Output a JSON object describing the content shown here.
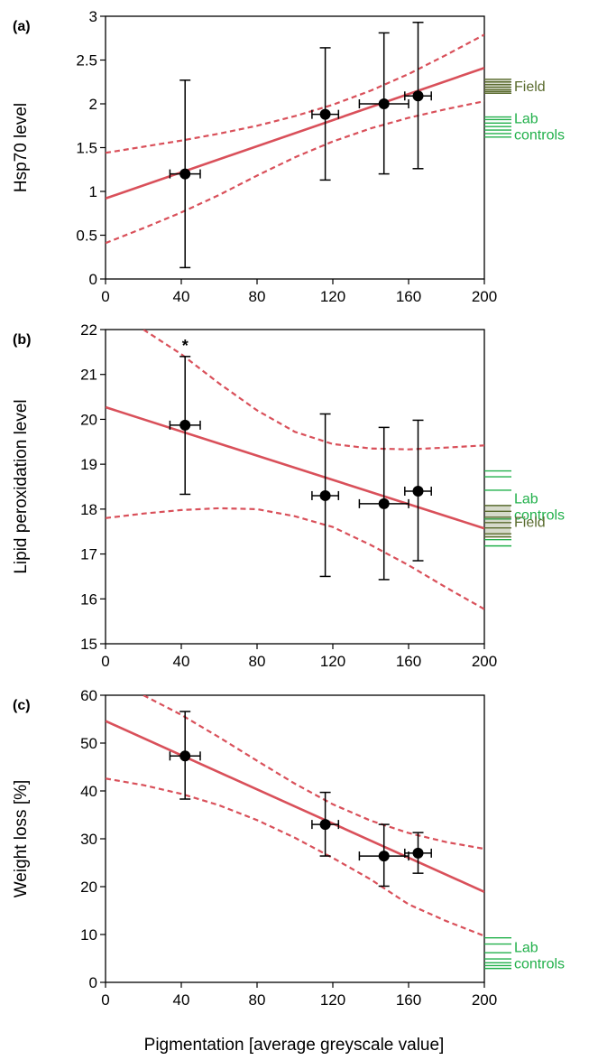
{
  "colors": {
    "fit": "#d9505a",
    "points": "#000000",
    "field": "#5a6b2e",
    "lab": "#22b04b"
  },
  "shared_xlabel": "Pigmentation [average greyscale value]",
  "chart_data": [
    {
      "panel": "(a)",
      "type": "scatter",
      "ylabel": "Hsp70 level",
      "xlim": [
        0,
        200
      ],
      "ylim": [
        0,
        3
      ],
      "xticks": [
        "0",
        "40",
        "80",
        "120",
        "160",
        "200"
      ],
      "yticks": [
        "0",
        "0.5",
        "1",
        "1.5",
        "2",
        "2.5",
        "3"
      ],
      "points": [
        {
          "x": 42,
          "y": 1.2,
          "xerr": 8,
          "ylow": 0.13,
          "yhigh": 2.27
        },
        {
          "x": 116,
          "y": 1.88,
          "xerr": 7,
          "ylow": 1.13,
          "yhigh": 2.64
        },
        {
          "x": 147,
          "y": 2.0,
          "xerr": 13,
          "ylow": 1.2,
          "yhigh": 2.81
        },
        {
          "x": 165,
          "y": 2.09,
          "xerr": 7,
          "ylow": 1.26,
          "yhigh": 2.93
        }
      ],
      "fit_line": {
        "x": [
          0,
          200
        ],
        "y": [
          0.92,
          2.41
        ]
      },
      "ci_upper": {
        "x": [
          0,
          20,
          40,
          60,
          80,
          100,
          120,
          140,
          160,
          180,
          200
        ],
        "y": [
          1.44,
          1.51,
          1.58,
          1.66,
          1.75,
          1.86,
          1.99,
          2.15,
          2.34,
          2.56,
          2.79
        ]
      },
      "ci_lower": {
        "x": [
          0,
          20,
          40,
          60,
          80,
          100,
          120,
          140,
          160,
          180,
          200
        ],
        "y": [
          0.41,
          0.58,
          0.76,
          0.96,
          1.18,
          1.39,
          1.57,
          1.72,
          1.84,
          1.94,
          2.03
        ]
      },
      "side_groups": [
        {
          "label_lines": [
            "Field"
          ],
          "color": "field",
          "values": [
            2.28,
            2.25,
            2.22,
            2.19,
            2.16,
            2.14,
            2.12
          ],
          "solid_band": [
            2.12,
            2.28
          ]
        },
        {
          "label_lines": [
            "Lab",
            "controls"
          ],
          "color": "lab",
          "values": [
            1.85,
            1.82,
            1.78,
            1.74,
            1.7,
            1.66,
            1.62
          ],
          "solid_band": null
        }
      ],
      "annotation": ""
    },
    {
      "panel": "(b)",
      "type": "scatter",
      "ylabel": "Lipid peroxidation level",
      "xlim": [
        0,
        200
      ],
      "ylim": [
        15,
        22
      ],
      "xticks": [
        "0",
        "40",
        "80",
        "120",
        "160",
        "200"
      ],
      "yticks": [
        "15",
        "16",
        "17",
        "18",
        "19",
        "20",
        "21",
        "22"
      ],
      "points": [
        {
          "x": 42,
          "y": 19.87,
          "xerr": 8,
          "ylow": 18.33,
          "yhigh": 21.4
        },
        {
          "x": 116,
          "y": 18.3,
          "xerr": 7,
          "ylow": 16.5,
          "yhigh": 20.12
        },
        {
          "x": 147,
          "y": 18.12,
          "xerr": 13,
          "ylow": 16.43,
          "yhigh": 19.82
        },
        {
          "x": 165,
          "y": 18.4,
          "xerr": 7,
          "ylow": 16.85,
          "yhigh": 19.98
        }
      ],
      "fit_line": {
        "x": [
          0,
          200
        ],
        "y": [
          20.27,
          17.57
        ]
      },
      "ci_upper": {
        "x": [
          20,
          40,
          60,
          80,
          100,
          120,
          140,
          160,
          180,
          200
        ],
        "y": [
          22.0,
          21.45,
          20.8,
          20.2,
          19.72,
          19.45,
          19.35,
          19.33,
          19.37,
          19.42
        ]
      },
      "ci_lower": {
        "x": [
          0,
          20,
          40,
          60,
          80,
          100,
          120,
          140,
          160,
          180,
          200
        ],
        "y": [
          17.8,
          17.9,
          17.98,
          18.02,
          18.0,
          17.84,
          17.6,
          17.2,
          16.75,
          16.25,
          15.77
        ]
      },
      "side_groups": [
        {
          "label_lines": [
            "Lab",
            "controls"
          ],
          "color": "lab",
          "values": [
            18.85,
            18.72,
            18.42,
            17.78,
            17.32,
            17.18
          ],
          "solid_band": null
        },
        {
          "label_lines": [
            "Field"
          ],
          "color": "field",
          "values": [
            18.08,
            17.95,
            17.82,
            17.7,
            17.58,
            17.45,
            17.38
          ],
          "solid_band": [
            17.38,
            18.08
          ]
        }
      ],
      "annotation": "*"
    },
    {
      "panel": "(c)",
      "type": "scatter",
      "ylabel": "Weight loss [%]",
      "xlim": [
        0,
        200
      ],
      "ylim": [
        0,
        60
      ],
      "xticks": [
        "0",
        "40",
        "80",
        "120",
        "160",
        "200"
      ],
      "yticks": [
        "0",
        "10",
        "20",
        "30",
        "40",
        "50",
        "60"
      ],
      "points": [
        {
          "x": 42,
          "y": 47.3,
          "xerr": 8,
          "ylow": 38.3,
          "yhigh": 56.6
        },
        {
          "x": 116,
          "y": 33.0,
          "xerr": 7,
          "ylow": 26.4,
          "yhigh": 39.7
        },
        {
          "x": 147,
          "y": 26.4,
          "xerr": 13,
          "ylow": 20.1,
          "yhigh": 33.0
        },
        {
          "x": 165,
          "y": 27.0,
          "xerr": 7,
          "ylow": 22.8,
          "yhigh": 31.3
        }
      ],
      "fit_line": {
        "x": [
          0,
          200
        ],
        "y": [
          54.6,
          18.9
        ]
      },
      "ci_upper": {
        "x": [
          20,
          40,
          60,
          80,
          100,
          120,
          140,
          160,
          180,
          200
        ],
        "y": [
          60.0,
          55.9,
          51.2,
          46.3,
          41.5,
          37.2,
          33.8,
          31.2,
          29.3,
          27.9
        ]
      },
      "ci_lower": {
        "x": [
          0,
          20,
          40,
          60,
          80,
          100,
          120,
          140,
          160,
          180,
          200
        ],
        "y": [
          42.6,
          41.2,
          39.4,
          37.0,
          33.9,
          30.2,
          26.0,
          21.5,
          16.3,
          12.8,
          9.7
        ]
      },
      "side_groups": [
        {
          "label_lines": [
            "Lab",
            "controls"
          ],
          "color": "lab",
          "values": [
            9.3,
            8.0,
            6.2,
            4.9,
            4.1,
            3.5,
            2.9
          ],
          "solid_band": null
        }
      ],
      "annotation": ""
    }
  ]
}
